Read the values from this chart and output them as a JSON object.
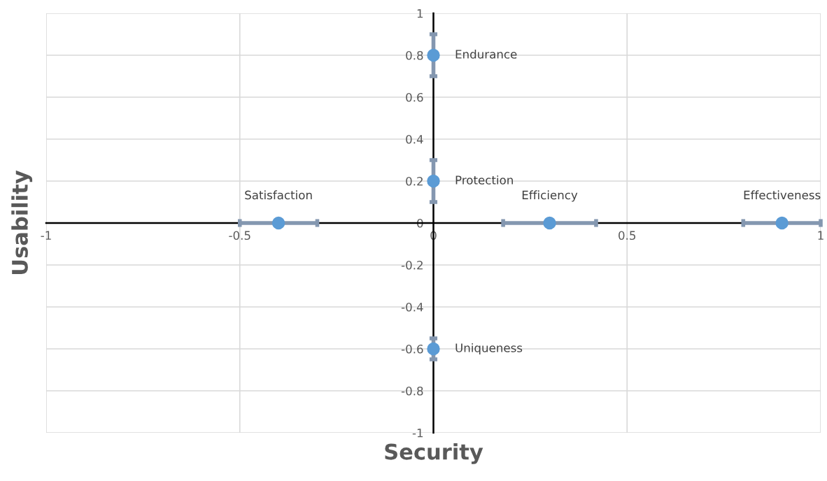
{
  "chart_data": {
    "type": "scatter",
    "xlabel": "Security",
    "ylabel": "Usability",
    "xlim": [
      -1,
      1
    ],
    "ylim": [
      -1,
      1
    ],
    "xticks": [
      -1,
      -0.5,
      0,
      0.5,
      1
    ],
    "yticks": [
      -1,
      -0.8,
      -0.6,
      -0.4,
      -0.2,
      0,
      0.2,
      0.4,
      0.6,
      0.8,
      1
    ],
    "grid": true,
    "marker": "circle",
    "series": [
      {
        "color": "#5b9bd5",
        "x": [
          0,
          0,
          0,
          -0.4,
          0.3,
          0.9
        ],
        "values": [
          0.8,
          0.2,
          -0.6,
          0,
          0,
          0
        ],
        "errors": [
          0.1,
          0.1,
          0.05,
          null,
          null,
          null
        ],
        "xerrors": [
          null,
          null,
          null,
          0.1,
          0.12,
          0.1
        ]
      }
    ],
    "annotations": [
      {
        "text": "Endurance",
        "x": 0,
        "y": 0.8
      },
      {
        "text": "Protection",
        "x": 0,
        "y": 0.2
      },
      {
        "text": "Uniqueness",
        "x": 0,
        "y": -0.6
      },
      {
        "text": "Satisfaction",
        "x": -0.4,
        "y": 0
      },
      {
        "text": "Efficiency",
        "x": 0.3,
        "y": 0
      },
      {
        "text": "Effectiveness",
        "x": 0.9,
        "y": 0
      }
    ]
  }
}
